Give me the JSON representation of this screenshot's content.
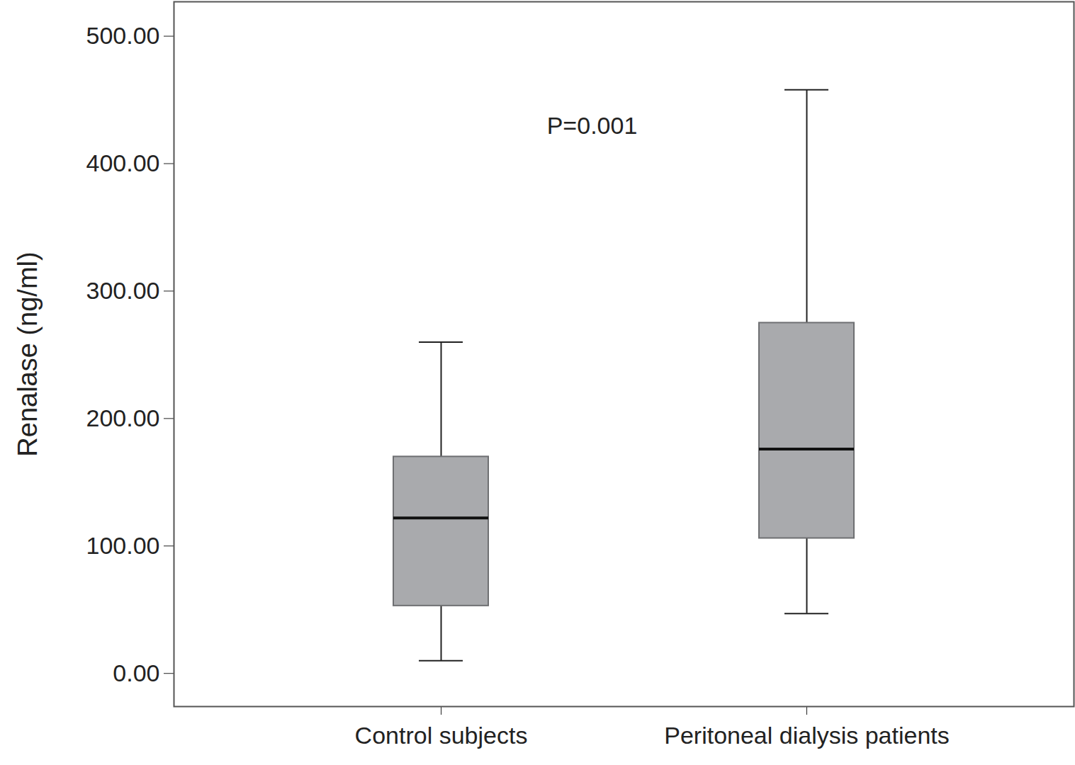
{
  "chart_data": {
    "type": "box",
    "categories": [
      "Control subjects",
      "Peritoneal dialysis patients"
    ],
    "whisker_low": [
      10,
      47
    ],
    "q1": [
      53,
      106
    ],
    "median": [
      122,
      176
    ],
    "q3": [
      170,
      275
    ],
    "whisker_high": [
      260,
      458
    ],
    "color": "#a9aaad",
    "ylabel": "Renalase (ng/ml)",
    "annotation": "P=0.001",
    "ylim": [
      -26,
      527
    ],
    "yticks": [
      {
        "value": 0,
        "label": "0.00"
      },
      {
        "value": 100,
        "label": "100.00"
      },
      {
        "value": 200,
        "label": "200.00"
      },
      {
        "value": 300,
        "label": "300.00"
      },
      {
        "value": 400,
        "label": "400.00"
      },
      {
        "value": 500,
        "label": "500.00"
      }
    ],
    "grid": false
  }
}
